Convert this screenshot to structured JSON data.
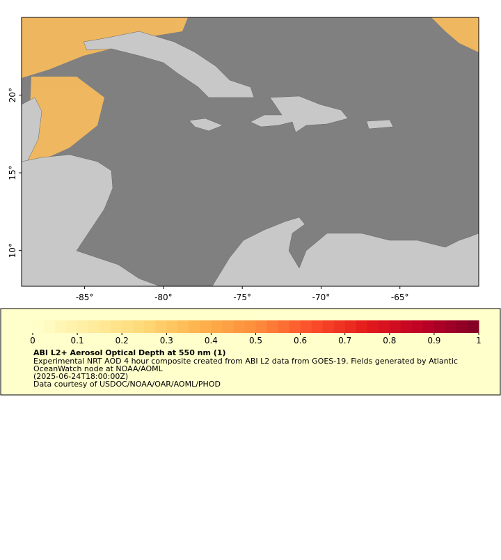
{
  "map": {
    "xlim": [
      -89,
      -60
    ],
    "ylim": [
      7.7,
      25
    ],
    "xticks": [
      {
        "value": -85,
        "label": "-85°"
      },
      {
        "value": -80,
        "label": "-80°"
      },
      {
        "value": -75,
        "label": "-75°"
      },
      {
        "value": -70,
        "label": "-70°"
      },
      {
        "value": -65,
        "label": "-65°"
      }
    ],
    "yticks": [
      {
        "value": 20,
        "label": "20°"
      },
      {
        "value": 15,
        "label": "15°"
      },
      {
        "value": 10,
        "label": "10°"
      }
    ]
  },
  "colorbar": {
    "range": [
      0,
      1
    ],
    "ticks": [
      0,
      0.1,
      0.2,
      0.3,
      0.4,
      0.5,
      0.6,
      0.7,
      0.8,
      0.9,
      1
    ],
    "colors": [
      "#ffffcc",
      "#ffeda0",
      "#fed976",
      "#feb24c",
      "#fd8d3c",
      "#fc4e2a",
      "#e31a1c",
      "#bd0026",
      "#800026"
    ]
  },
  "caption": {
    "title": "ABI L2+ Aerosol Optical Depth at 550 nm (1)",
    "lines": [
      "Experimental NRT AOD 4 hour composite created from ABI L2 data from GOES-19. Fields generated by Atlantic",
      "OceanWatch node at NOAA/AOML",
      "(2025-06-24T18:00:00Z)",
      "Data courtesy of USDOC/NOAA/OAR/AOML/PHOD"
    ]
  }
}
